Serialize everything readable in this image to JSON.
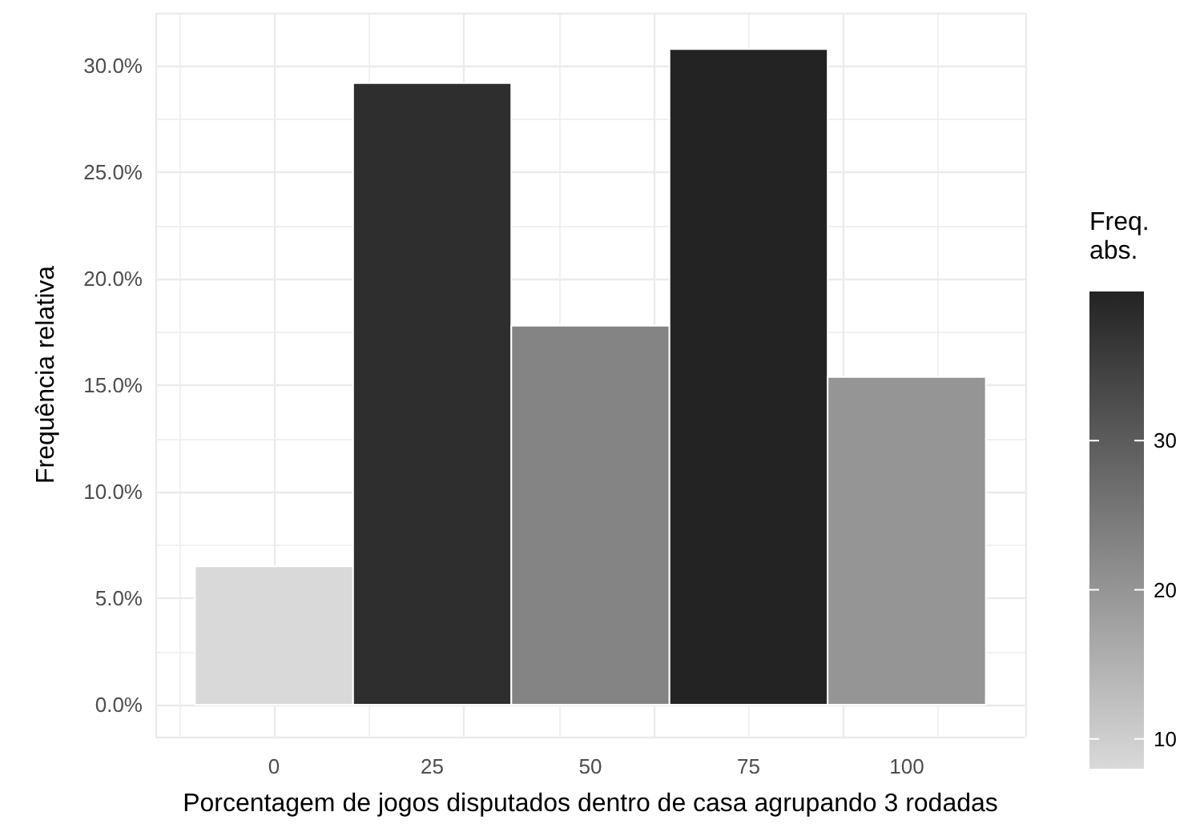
{
  "chart_data": {
    "type": "histogram",
    "xlabel": "Porcentagem de jogos disputados dentro de casa agrupando 3 rodadas",
    "ylabel": "Frequência relativa",
    "clabel": "Freq. abs.",
    "bins": [
      -12.5,
      12.5,
      37.5,
      62.5,
      87.5,
      112.5
    ],
    "values": [
      6.5,
      29.2,
      17.8,
      30.8,
      15.4
    ],
    "cvalues": [
      8,
      38,
      23,
      40,
      20
    ],
    "clim": [
      8,
      40
    ],
    "cticks": [
      10,
      20,
      30
    ],
    "xlim": [
      -18.75,
      118.75
    ],
    "xticks": [
      0,
      25,
      50,
      75,
      100
    ],
    "ylim": [
      -1.5,
      32.5
    ],
    "yticks": [
      {
        "value": 0,
        "label": "0.0%"
      },
      {
        "value": 5,
        "label": "5.0%"
      },
      {
        "value": 10,
        "label": "10.0%"
      },
      {
        "value": 15,
        "label": "15.0%"
      },
      {
        "value": 20,
        "label": "20.0%"
      },
      {
        "value": 25,
        "label": "25.0%"
      },
      {
        "value": 30,
        "label": "30.0%"
      }
    ],
    "grid": true
  }
}
